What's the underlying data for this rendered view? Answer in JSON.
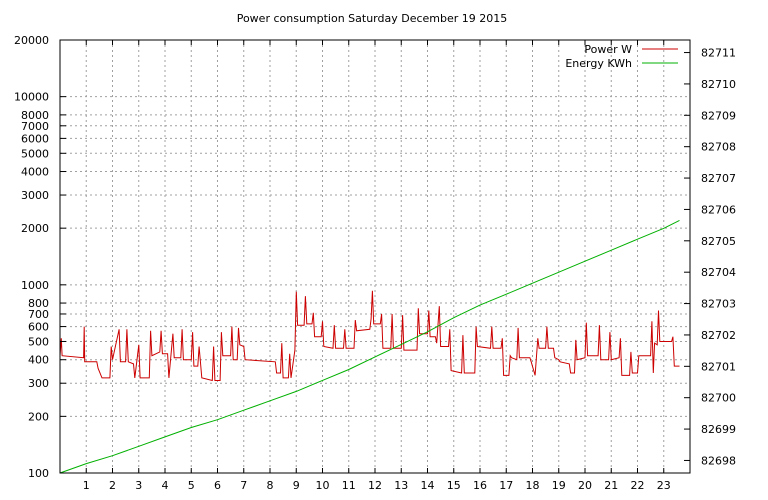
{
  "chart_data": {
    "type": "line",
    "title": "Power consumption Saturday December 19 2015",
    "xlabel": "",
    "ylabel": "",
    "y2label": "",
    "x_ticks": [
      "1",
      "2",
      "3",
      "4",
      "5",
      "6",
      "7",
      "8",
      "9",
      "10",
      "11",
      "12",
      "13",
      "14",
      "15",
      "16",
      "17",
      "18",
      "19",
      "20",
      "21",
      "22",
      "23"
    ],
    "xlim": [
      0,
      24
    ],
    "y_left": {
      "scale": "log",
      "ylim": [
        100,
        20000
      ],
      "ticks": [
        100,
        200,
        300,
        400,
        500,
        600,
        700,
        800,
        1000,
        2000,
        3000,
        4000,
        5000,
        6000,
        7000,
        8000,
        10000,
        20000
      ],
      "tick_labels": [
        "100",
        "200",
        "300",
        "400",
        "500",
        "600",
        "700",
        "800",
        "1000",
        "2000",
        "3000",
        "4000",
        "5000",
        "6000",
        "7000",
        "8000",
        "10000",
        "20000"
      ]
    },
    "y_right": {
      "scale": "linear",
      "ylim": [
        82697.6,
        82711.4
      ],
      "ticks": [
        82698,
        82699,
        82700,
        82701,
        82702,
        82703,
        82704,
        82705,
        82706,
        82707,
        82708,
        82709,
        82710,
        82711
      ],
      "tick_labels": [
        "82698",
        "82699",
        "82700",
        "82701",
        "82702",
        "82703",
        "82704",
        "82705",
        "82706",
        "82707",
        "82708",
        "82709",
        "82710",
        "82711"
      ]
    },
    "grid": true,
    "legend_position": "top-right",
    "series": [
      {
        "name": "Power W",
        "axis": "left",
        "color": "#cc0000",
        "points": [
          [
            0.0,
            420
          ],
          [
            0.05,
            520
          ],
          [
            0.08,
            420
          ],
          [
            0.9,
            410
          ],
          [
            0.92,
            600
          ],
          [
            0.94,
            390
          ],
          [
            1.4,
            390
          ],
          [
            1.45,
            360
          ],
          [
            1.6,
            320
          ],
          [
            1.9,
            320
          ],
          [
            1.95,
            470
          ],
          [
            2.0,
            400
          ],
          [
            2.25,
            580
          ],
          [
            2.3,
            390
          ],
          [
            2.5,
            390
          ],
          [
            2.55,
            580
          ],
          [
            2.6,
            390
          ],
          [
            2.8,
            380
          ],
          [
            2.85,
            320
          ],
          [
            3.0,
            480
          ],
          [
            3.05,
            320
          ],
          [
            3.4,
            320
          ],
          [
            3.45,
            570
          ],
          [
            3.5,
            420
          ],
          [
            3.8,
            440
          ],
          [
            3.85,
            570
          ],
          [
            3.9,
            430
          ],
          [
            4.1,
            430
          ],
          [
            4.15,
            320
          ],
          [
            4.3,
            550
          ],
          [
            4.35,
            410
          ],
          [
            4.6,
            410
          ],
          [
            4.65,
            580
          ],
          [
            4.7,
            400
          ],
          [
            5.0,
            400
          ],
          [
            5.05,
            560
          ],
          [
            5.1,
            370
          ],
          [
            5.25,
            370
          ],
          [
            5.3,
            470
          ],
          [
            5.4,
            320
          ],
          [
            5.8,
            310
          ],
          [
            5.85,
            470
          ],
          [
            5.9,
            310
          ],
          [
            6.1,
            310
          ],
          [
            6.15,
            560
          ],
          [
            6.2,
            420
          ],
          [
            6.5,
            420
          ],
          [
            6.55,
            600
          ],
          [
            6.6,
            400
          ],
          [
            6.75,
            400
          ],
          [
            6.8,
            590
          ],
          [
            6.85,
            480
          ],
          [
            7.0,
            470
          ],
          [
            7.05,
            400
          ],
          [
            8.2,
            390
          ],
          [
            8.25,
            340
          ],
          [
            8.4,
            340
          ],
          [
            8.45,
            490
          ],
          [
            8.5,
            320
          ],
          [
            8.7,
            320
          ],
          [
            8.75,
            430
          ],
          [
            8.8,
            320
          ],
          [
            8.95,
            450
          ],
          [
            9.0,
            920
          ],
          [
            9.05,
            610
          ],
          [
            9.3,
            610
          ],
          [
            9.35,
            870
          ],
          [
            9.4,
            620
          ],
          [
            9.6,
            620
          ],
          [
            9.65,
            710
          ],
          [
            9.7,
            530
          ],
          [
            9.95,
            530
          ],
          [
            10.0,
            640
          ],
          [
            10.05,
            470
          ],
          [
            10.4,
            460
          ],
          [
            10.45,
            610
          ],
          [
            10.5,
            460
          ],
          [
            10.8,
            460
          ],
          [
            10.85,
            580
          ],
          [
            10.9,
            460
          ],
          [
            11.2,
            460
          ],
          [
            11.25,
            650
          ],
          [
            11.3,
            570
          ],
          [
            11.8,
            580
          ],
          [
            11.85,
            660
          ],
          [
            11.9,
            930
          ],
          [
            11.95,
            620
          ],
          [
            12.2,
            620
          ],
          [
            12.25,
            700
          ],
          [
            12.3,
            460
          ],
          [
            12.6,
            460
          ],
          [
            12.65,
            700
          ],
          [
            12.7,
            460
          ],
          [
            13.0,
            460
          ],
          [
            13.05,
            690
          ],
          [
            13.1,
            450
          ],
          [
            13.6,
            450
          ],
          [
            13.65,
            750
          ],
          [
            13.7,
            550
          ],
          [
            14.0,
            550
          ],
          [
            14.05,
            730
          ],
          [
            14.1,
            530
          ],
          [
            14.3,
            530
          ],
          [
            14.35,
            490
          ],
          [
            14.45,
            770
          ],
          [
            14.5,
            470
          ],
          [
            14.8,
            470
          ],
          [
            14.85,
            580
          ],
          [
            14.9,
            350
          ],
          [
            15.3,
            340
          ],
          [
            15.35,
            540
          ],
          [
            15.4,
            340
          ],
          [
            15.8,
            340
          ],
          [
            15.85,
            600
          ],
          [
            15.9,
            470
          ],
          [
            16.4,
            460
          ],
          [
            16.45,
            600
          ],
          [
            16.5,
            460
          ],
          [
            16.8,
            460
          ],
          [
            16.85,
            520
          ],
          [
            16.9,
            330
          ],
          [
            17.1,
            330
          ],
          [
            17.15,
            420
          ],
          [
            17.2,
            410
          ],
          [
            17.4,
            400
          ],
          [
            17.45,
            590
          ],
          [
            17.5,
            410
          ],
          [
            17.9,
            410
          ],
          [
            17.95,
            390
          ],
          [
            18.1,
            330
          ],
          [
            18.2,
            520
          ],
          [
            18.25,
            460
          ],
          [
            18.5,
            460
          ],
          [
            18.55,
            600
          ],
          [
            18.6,
            460
          ],
          [
            18.8,
            460
          ],
          [
            18.85,
            410
          ],
          [
            19.0,
            400
          ],
          [
            19.05,
            390
          ],
          [
            19.4,
            380
          ],
          [
            19.45,
            340
          ],
          [
            19.6,
            340
          ],
          [
            19.65,
            510
          ],
          [
            19.7,
            400
          ],
          [
            20.0,
            410
          ],
          [
            20.05,
            630
          ],
          [
            20.1,
            420
          ],
          [
            20.5,
            420
          ],
          [
            20.55,
            610
          ],
          [
            20.6,
            400
          ],
          [
            20.9,
            400
          ],
          [
            20.95,
            560
          ],
          [
            21.0,
            400
          ],
          [
            21.3,
            410
          ],
          [
            21.35,
            520
          ],
          [
            21.4,
            330
          ],
          [
            21.7,
            330
          ],
          [
            21.75,
            440
          ],
          [
            21.8,
            340
          ],
          [
            22.0,
            340
          ],
          [
            22.05,
            420
          ],
          [
            22.5,
            420
          ],
          [
            22.55,
            640
          ],
          [
            22.6,
            340
          ],
          [
            22.65,
            490
          ],
          [
            22.75,
            480
          ],
          [
            22.8,
            730
          ],
          [
            22.85,
            500
          ],
          [
            23.3,
            500
          ],
          [
            23.35,
            530
          ],
          [
            23.4,
            370
          ],
          [
            23.6,
            370
          ]
        ]
      },
      {
        "name": "Energy KWh",
        "axis": "right",
        "color": "#00b000",
        "points": [
          [
            0.0,
            82697.6
          ],
          [
            1.0,
            82697.9
          ],
          [
            2.0,
            82698.15
          ],
          [
            3.0,
            82698.45
          ],
          [
            4.0,
            82698.75
          ],
          [
            5.0,
            82699.05
          ],
          [
            6.0,
            82699.3
          ],
          [
            7.0,
            82699.6
          ],
          [
            8.0,
            82699.9
          ],
          [
            9.0,
            82700.2
          ],
          [
            10.0,
            82700.55
          ],
          [
            11.0,
            82700.9
          ],
          [
            12.0,
            82701.3
          ],
          [
            13.0,
            82701.7
          ],
          [
            14.0,
            82702.1
          ],
          [
            15.0,
            82702.55
          ],
          [
            16.0,
            82702.95
          ],
          [
            17.0,
            82703.3
          ],
          [
            18.0,
            82703.65
          ],
          [
            19.0,
            82704.0
          ],
          [
            20.0,
            82704.35
          ],
          [
            21.0,
            82704.7
          ],
          [
            22.0,
            82705.05
          ],
          [
            23.0,
            82705.4
          ],
          [
            23.6,
            82705.65
          ]
        ]
      }
    ]
  }
}
